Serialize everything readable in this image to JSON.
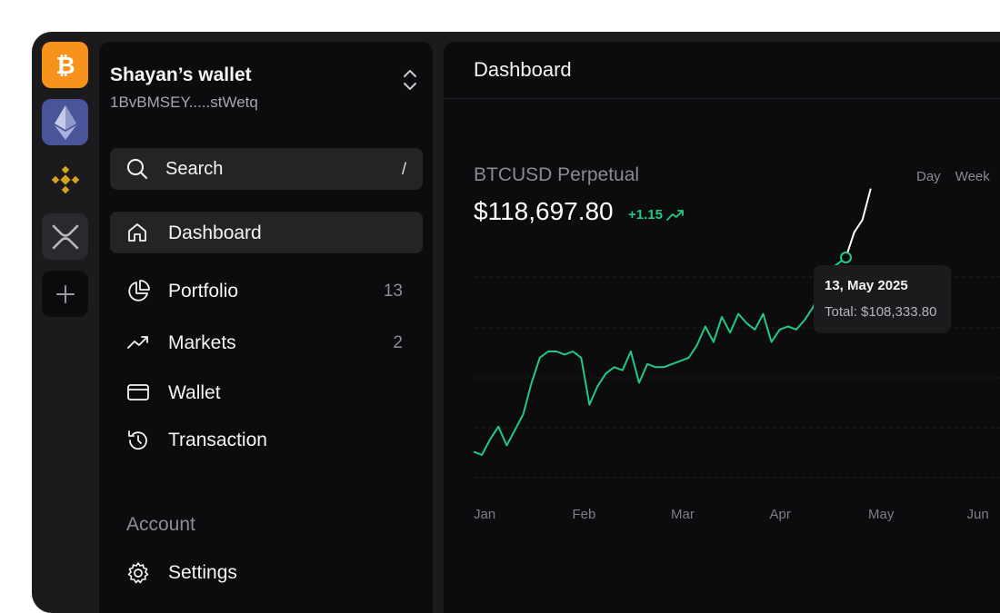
{
  "coins": [
    {
      "name": "Bitcoin",
      "icon": "bitcoin-icon",
      "bg": "#f7931a"
    },
    {
      "name": "Ethereum",
      "icon": "ethereum-icon",
      "bg": "#4a5499"
    },
    {
      "name": "Binance",
      "icon": "binance-icon",
      "bg": "#1b1b1e"
    },
    {
      "name": "XRP",
      "icon": "xrp-icon",
      "bg": "#2a2a2e"
    },
    {
      "name": "Add",
      "icon": "plus-icon",
      "bg": "#0c0c0e"
    }
  ],
  "wallet": {
    "name": "Shayan’s wallet",
    "address": "1BvBMSEY.....stWetq"
  },
  "search": {
    "label": "Search",
    "shortcut": "/"
  },
  "nav": [
    {
      "label": "Dashboard",
      "icon": "home-icon",
      "count": ""
    },
    {
      "label": "Portfolio",
      "icon": "pie-chart-icon",
      "count": "13"
    },
    {
      "label": "Markets",
      "icon": "trend-up-icon",
      "count": "2"
    },
    {
      "label": "Wallet",
      "icon": "credit-card-icon",
      "count": ""
    },
    {
      "label": "Transaction",
      "icon": "history-icon",
      "count": ""
    }
  ],
  "account": {
    "heading": "Account",
    "items": [
      {
        "label": "Settings",
        "icon": "gear-icon"
      }
    ]
  },
  "main": {
    "title": "Dashboard",
    "pair": "BTCUSD Perpetual",
    "price": "$118,697.80",
    "change": "+1.15",
    "ranges": [
      "Day",
      "Week"
    ]
  },
  "tooltip": {
    "date": "13, May 2025",
    "total": "Total: $108,333.80"
  },
  "colors": {
    "accent_green": "#22c983",
    "bitcoin": "#f7931a"
  },
  "chart_data": {
    "type": "line",
    "x_labels": [
      "Jan",
      "Feb",
      "Mar",
      "Apr",
      "May",
      "Jun"
    ],
    "grid": true,
    "series": [
      {
        "values": [
          84,
          83.5,
          86,
          88,
          85,
          87.5,
          90,
          95,
          99,
          100,
          100,
          99.5,
          100,
          99,
          91.5,
          94.5,
          96.5,
          97.5,
          97,
          100,
          95,
          98,
          97.5,
          97.5,
          98,
          98.5,
          99,
          101,
          104,
          101.5,
          105.5,
          103,
          106,
          104.5,
          103.5,
          106,
          101.5,
          103.5,
          104,
          103.5,
          105,
          107,
          110,
          113,
          114,
          115,
          119,
          121,
          126
        ]
      }
    ],
    "highlight_index": 45
  }
}
